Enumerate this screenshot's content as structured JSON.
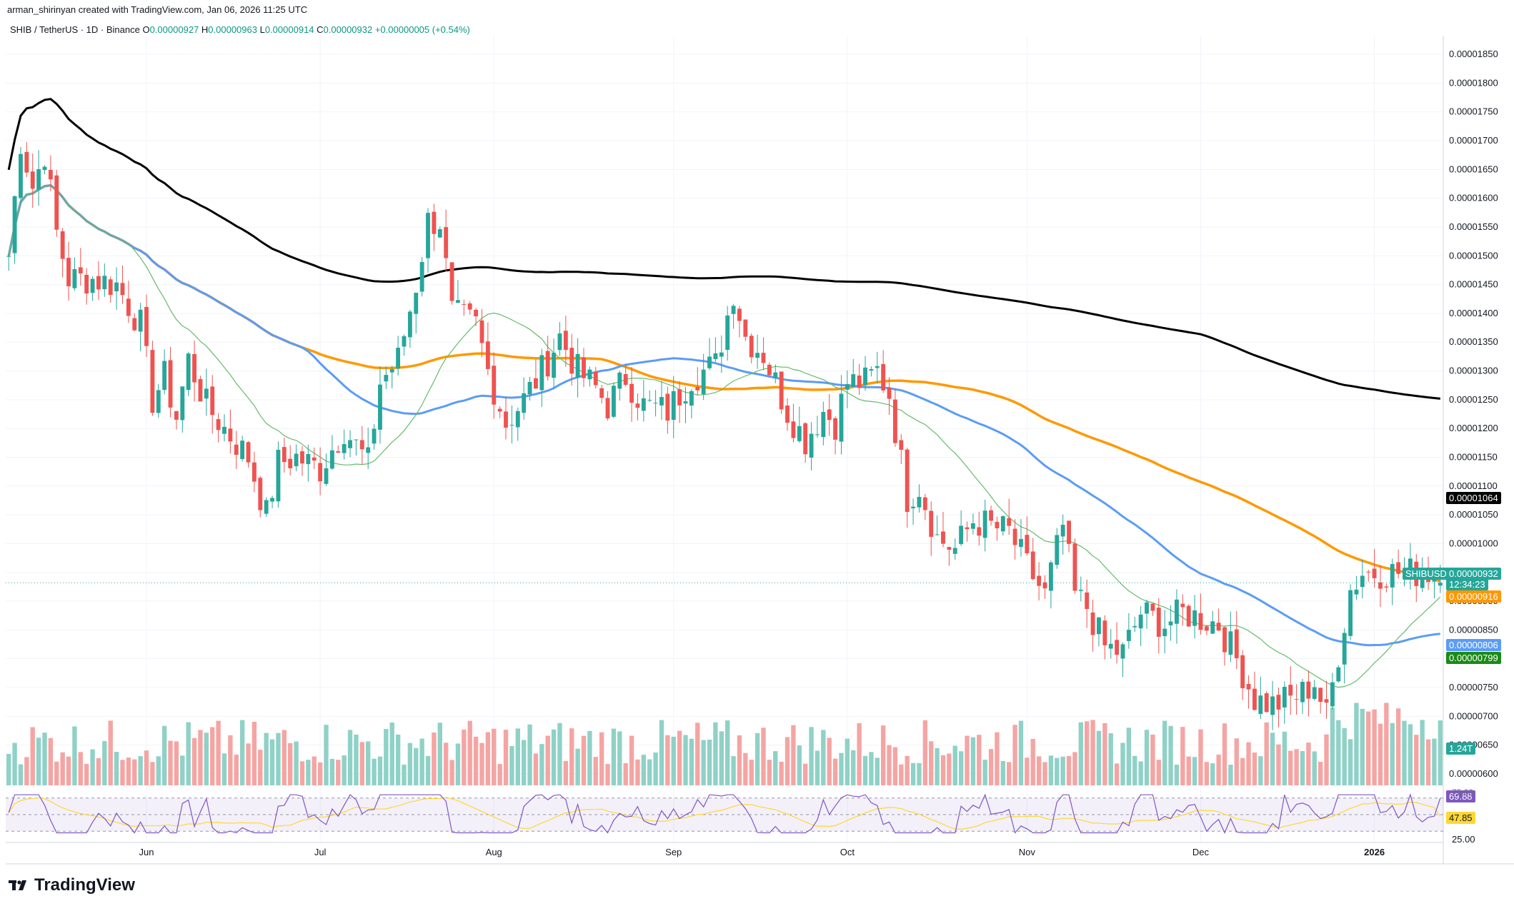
{
  "header": {
    "credit": "arman_shirinyan created with TradingView.com, Jan 06, 2026 11:25 UTC",
    "symbol": "SHIB / TetherUS · 1D · Binance",
    "open_label": "O",
    "open": "0.00000927",
    "high_label": "H",
    "high": "0.00000963",
    "low_label": "L",
    "low": "0.00000914",
    "close_label": "C",
    "close": "0.00000932",
    "change": "+0.00000005 (+0.54%)"
  },
  "logo": {
    "text": "TradingView",
    "icon": "tradingview-logo-icon"
  },
  "colors": {
    "up": "#26a69a",
    "down": "#ef5350",
    "vol_up": "#8fd1c7",
    "vol_down": "#f4a5a3",
    "ma200": "#000000",
    "ma100": "#ff9800",
    "ma50": "#5b9cf6",
    "ma20": "#66bb6a",
    "rsi": "#7e57c2",
    "rsi_ma": "#fdd835"
  },
  "chart_data": {
    "type": "candlestick",
    "symbol": "SHIBUSDT",
    "timeframe": "1D",
    "price_range": [
      5.8e-06,
      1.87e-05
    ],
    "price_ticks": [
      "0.00001850",
      "0.00001800",
      "0.00001750",
      "0.00001700",
      "0.00001650",
      "0.00001600",
      "0.00001550",
      "0.00001500",
      "0.00001450",
      "0.00001400",
      "0.00001350",
      "0.00001300",
      "0.00001250",
      "0.00001200",
      "0.00001150",
      "0.00001100",
      "0.00001050",
      "0.00001000",
      "0.00000950",
      "0.00000900",
      "0.00000850",
      "0.00000800",
      "0.00000750",
      "0.00000700",
      "0.00000650",
      "0.00000600"
    ],
    "x_labels": [
      "Jun",
      "Jul",
      "Aug",
      "Sep",
      "Oct",
      "Nov",
      "Dec",
      "2026"
    ],
    "bars": 240,
    "bar_of_first_label": 23,
    "anchors": [
      [
        0,
        1500
      ],
      [
        2,
        1700
      ],
      [
        4,
        1620
      ],
      [
        6,
        1680
      ],
      [
        8,
        1540
      ],
      [
        10,
        1460
      ],
      [
        14,
        1460
      ],
      [
        18,
        1450
      ],
      [
        22,
        1380
      ],
      [
        24,
        1250
      ],
      [
        26,
        1290
      ],
      [
        28,
        1220
      ],
      [
        30,
        1320
      ],
      [
        33,
        1240
      ],
      [
        36,
        1200
      ],
      [
        40,
        1150
      ],
      [
        43,
        1050
      ],
      [
        45,
        1140
      ],
      [
        48,
        1150
      ],
      [
        52,
        1130
      ],
      [
        56,
        1200
      ],
      [
        60,
        1140
      ],
      [
        62,
        1280
      ],
      [
        65,
        1320
      ],
      [
        68,
        1450
      ],
      [
        70,
        1560
      ],
      [
        72,
        1560
      ],
      [
        74,
        1400
      ],
      [
        78,
        1380
      ],
      [
        80,
        1300
      ],
      [
        83,
        1210
      ],
      [
        86,
        1250
      ],
      [
        89,
        1300
      ],
      [
        92,
        1360
      ],
      [
        95,
        1300
      ],
      [
        98,
        1270
      ],
      [
        100,
        1240
      ],
      [
        103,
        1290
      ],
      [
        106,
        1240
      ],
      [
        110,
        1230
      ],
      [
        114,
        1290
      ],
      [
        118,
        1310
      ],
      [
        121,
        1440
      ],
      [
        123,
        1360
      ],
      [
        126,
        1330
      ],
      [
        128,
        1280
      ],
      [
        130,
        1230
      ],
      [
        133,
        1180
      ],
      [
        136,
        1230
      ],
      [
        138,
        1210
      ],
      [
        140,
        1280
      ],
      [
        143,
        1280
      ],
      [
        145,
        1300
      ],
      [
        147,
        1260
      ],
      [
        150,
        1080
      ],
      [
        152,
        1100
      ],
      [
        155,
        1010
      ],
      [
        158,
        990
      ],
      [
        161,
        1040
      ],
      [
        164,
        1030
      ],
      [
        167,
        1020
      ],
      [
        170,
        960
      ],
      [
        173,
        910
      ],
      [
        176,
        1030
      ],
      [
        178,
        910
      ],
      [
        180,
        890
      ],
      [
        183,
        820
      ],
      [
        186,
        810
      ],
      [
        189,
        880
      ],
      [
        193,
        860
      ],
      [
        196,
        880
      ],
      [
        199,
        870
      ],
      [
        202,
        860
      ],
      [
        205,
        800
      ],
      [
        208,
        730
      ],
      [
        211,
        720
      ],
      [
        214,
        730
      ],
      [
        216,
        740
      ],
      [
        218,
        760
      ],
      [
        220,
        700
      ],
      [
        222,
        810
      ],
      [
        224,
        920
      ],
      [
        226,
        950
      ]
    ],
    "last_bar": {
      "open": 9.27e-06,
      "high": 9.63e-06,
      "low": 9.14e-06,
      "close": 9.32e-06
    },
    "moving_averages": [
      {
        "period": 200,
        "last": "0.00001064"
      },
      {
        "period": 100,
        "last": "0.00000916"
      },
      {
        "period": 50,
        "last": "0.00000806"
      },
      {
        "period": 20,
        "last": "0.00000799"
      }
    ],
    "volume_last": "1.24T",
    "rsi": {
      "value": "69.88",
      "ma": "47.85",
      "levels": [
        70,
        50,
        30
      ],
      "axis_label": "25.00",
      "top_label": "75.00"
    },
    "grid": true
  },
  "price_tags": {
    "symbol_label": "SHIBUSDT",
    "last_price": "0.00000932",
    "countdown": "12:34:23",
    "ma200": "0.00001064",
    "ma100": "0.00000916",
    "ma50": "0.00000806",
    "ma20": "0.00000799",
    "volume": "1.24T",
    "rsi": "69.88",
    "rsi_ma": "47.85",
    "rsi_axis": "25.00",
    "rsi_top": "75.00"
  }
}
